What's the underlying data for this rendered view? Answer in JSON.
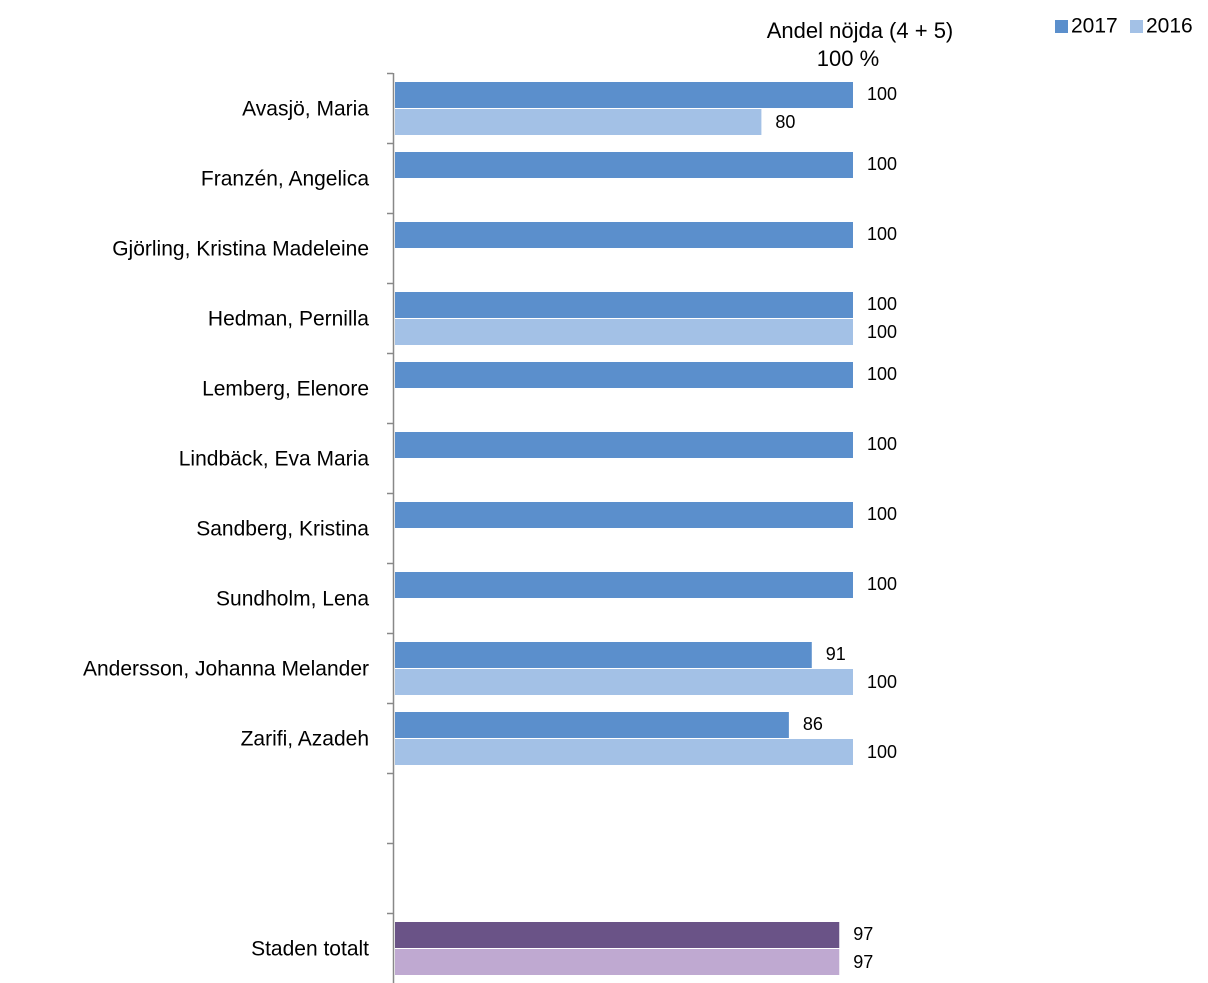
{
  "chart_data": {
    "type": "hbar",
    "title": "Andel nöjda (4 + 5)",
    "categories": [
      "Avasjö, Maria",
      "Franzén, Angelica",
      "Gjörling, Kristina Madeleine",
      "Hedman, Pernilla",
      "Lemberg, Elenore",
      "Lindbäck, Eva Maria",
      "Sandberg, Kristina",
      "Sundholm, Lena",
      "Andersson, Johanna Melander",
      "Zarifi, Azadeh",
      null,
      null,
      "Staden totalt"
    ],
    "series": [
      {
        "name": "2017",
        "color": "#5b8fcc",
        "colors": [
          "#5b8fcc",
          "#5b8fcc",
          "#5b8fcc",
          "#5b8fcc",
          "#5b8fcc",
          "#5b8fcc",
          "#5b8fcc",
          "#5b8fcc",
          "#5b8fcc",
          "#5b8fcc",
          "#5b8fcc",
          "#5b8fcc",
          "#6a5387"
        ],
        "values": [
          100,
          100,
          100,
          100,
          100,
          100,
          100,
          100,
          91,
          86,
          null,
          null,
          97
        ]
      },
      {
        "name": "2016",
        "color": "#a3c1e6",
        "colors": [
          "#a3c1e6",
          "#a3c1e6",
          "#a3c1e6",
          "#a3c1e6",
          "#a3c1e6",
          "#a3c1e6",
          "#a3c1e6",
          "#a3c1e6",
          "#a3c1e6",
          "#a3c1e6",
          "#a3c1e6",
          "#a3c1e6",
          "#bfa9d1"
        ],
        "values": [
          80,
          null,
          null,
          100,
          null,
          null,
          null,
          null,
          100,
          100,
          null,
          null,
          97
        ]
      }
    ],
    "xlim": [
      0,
      100
    ],
    "xticks": [
      {
        "value": 100,
        "label": "100 %"
      }
    ],
    "legend": "top-right"
  }
}
